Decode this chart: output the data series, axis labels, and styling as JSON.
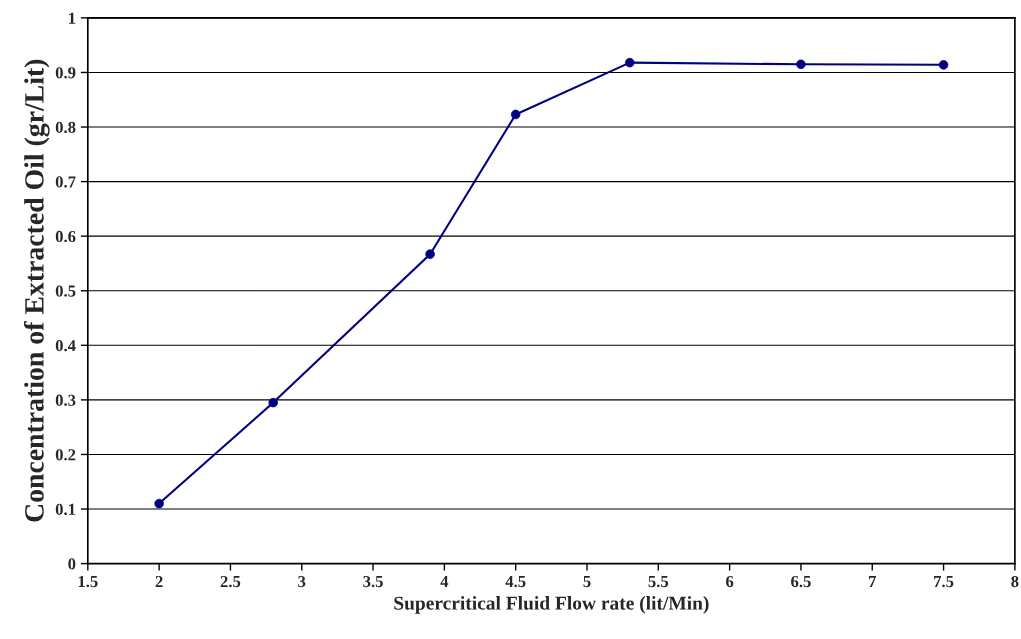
{
  "chart_data": {
    "type": "line",
    "xlabel": "Supercritical Fluid Flow rate (lit/Min)",
    "ylabel": "Concentration of Extracted Oil (gr/Lit)",
    "x": [
      2,
      2.8,
      3.9,
      4.5,
      5.3,
      6.5,
      7.5
    ],
    "series": [
      {
        "color": "#000080",
        "values": [
          0.11,
          0.295,
          0.567,
          0.823,
          0.918,
          0.915,
          0.914
        ]
      }
    ],
    "xlim": [
      1.5,
      8
    ],
    "xticks": [
      1.5,
      2,
      2.5,
      3,
      3.5,
      4,
      4.5,
      5,
      5.5,
      6,
      6.5,
      7,
      7.5,
      8
    ],
    "ylim": [
      0,
      1
    ],
    "yticks": [
      0,
      0.1,
      0.2,
      0.3,
      0.4,
      0.5,
      0.6,
      0.7,
      0.8,
      0.9,
      1
    ],
    "grid": "y",
    "marker": "circle",
    "line_style": "solid"
  }
}
